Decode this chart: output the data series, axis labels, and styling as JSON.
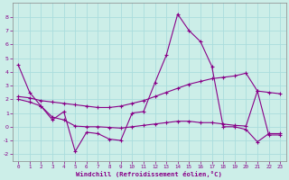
{
  "xlabel": "Windchill (Refroidissement éolien,°C)",
  "background_color": "#cceee8",
  "line_color": "#880088",
  "grid_color": "#aadddd",
  "xlim": [
    -0.5,
    23.5
  ],
  "ylim": [
    -2.5,
    9.0
  ],
  "yticks": [
    -2,
    -1,
    0,
    1,
    2,
    3,
    4,
    5,
    6,
    7,
    8
  ],
  "xticks": [
    0,
    1,
    2,
    3,
    4,
    5,
    6,
    7,
    8,
    9,
    10,
    11,
    12,
    13,
    14,
    15,
    16,
    17,
    18,
    19,
    20,
    21,
    22,
    23
  ],
  "series1_x": [
    0,
    1,
    2,
    3,
    4,
    5,
    6,
    7,
    8,
    9,
    10,
    11,
    12,
    13,
    14,
    15,
    16,
    17,
    18,
    19,
    20,
    21,
    22,
    23
  ],
  "series1_y": [
    4.5,
    2.5,
    1.5,
    0.5,
    1.1,
    -1.8,
    -0.4,
    -0.5,
    -0.9,
    -1.0,
    1.0,
    1.1,
    3.2,
    5.2,
    8.2,
    7.0,
    6.2,
    4.4,
    0.0,
    0.0,
    -0.2,
    -1.1,
    -0.5,
    -0.5
  ],
  "series2_x": [
    0,
    1,
    2,
    3,
    4,
    5,
    6,
    7,
    8,
    9,
    10,
    11,
    12,
    13,
    14,
    15,
    16,
    17,
    18,
    19,
    20,
    21,
    22,
    23
  ],
  "series2_y": [
    2.2,
    2.1,
    1.9,
    1.8,
    1.7,
    1.6,
    1.5,
    1.4,
    1.4,
    1.5,
    1.7,
    1.9,
    2.2,
    2.5,
    2.8,
    3.1,
    3.3,
    3.5,
    3.6,
    3.7,
    3.9,
    2.6,
    2.5,
    2.4
  ],
  "series3_x": [
    0,
    1,
    2,
    3,
    4,
    5,
    6,
    7,
    8,
    9,
    10,
    11,
    12,
    13,
    14,
    15,
    16,
    17,
    18,
    19,
    20,
    21,
    22,
    23
  ],
  "series3_y": [
    2.0,
    1.8,
    1.5,
    0.7,
    0.5,
    0.05,
    0.0,
    0.0,
    -0.05,
    -0.1,
    0.0,
    0.1,
    0.2,
    0.3,
    0.4,
    0.4,
    0.3,
    0.3,
    0.2,
    0.1,
    0.05,
    2.6,
    -0.6,
    -0.6
  ]
}
